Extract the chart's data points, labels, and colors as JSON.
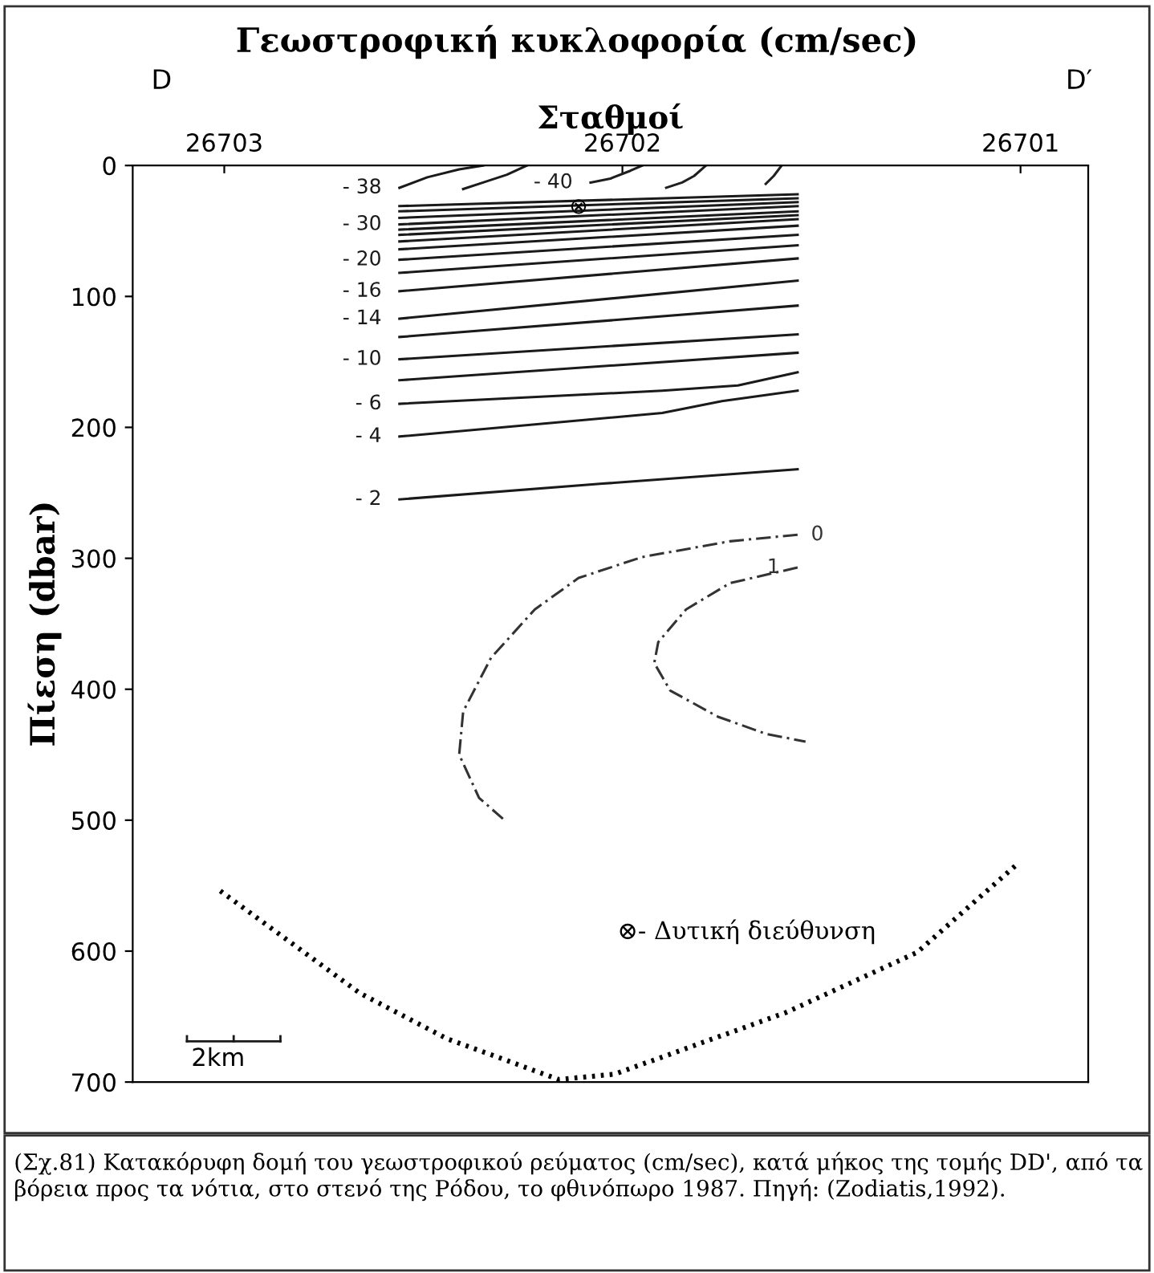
{
  "chart_data": {
    "type": "line",
    "title": "Γεωστροφική κυκλοφορία (cm/sec)",
    "xlabel": "Σταθμοί",
    "ylabel": "Πίεση (dbar)",
    "xlim": [
      26703.23,
      26700.83
    ],
    "xticks": [
      26703,
      26702,
      26701
    ],
    "ylim": [
      700,
      0
    ],
    "yticks": [
      0,
      100,
      200,
      300,
      400,
      500,
      600,
      700
    ],
    "grid": false,
    "legend": false,
    "marker": "none",
    "series": [
      {
        "name": "- 38",
        "color": "#1a1a1a",
        "x": [
          26702.56,
          26702.49,
          26702.41,
          26702.35
        ],
        "values": [
          17,
          9,
          3,
          0
        ]
      },
      {
        "color": "#1c1c1c",
        "x": [
          26702.4,
          26702.35,
          26702.29,
          26702.24
        ],
        "values": [
          18,
          13,
          7,
          0
        ]
      },
      {
        "name": "- 40",
        "color": "#1e1e1e",
        "x": [
          26702.08,
          26702.03,
          26701.98,
          26701.95
        ],
        "values": [
          13,
          10,
          4,
          0
        ]
      },
      {
        "color": "#202020",
        "x": [
          26701.89,
          26701.85,
          26701.82,
          26701.79
        ],
        "values": [
          17,
          13,
          8,
          0
        ]
      },
      {
        "color": "#222222",
        "x": [
          26701.64,
          26701.62,
          26701.6
        ],
        "values": [
          14,
          8,
          0
        ]
      },
      {
        "color": "#1a1a1a",
        "x": [
          26702.56,
          26701.56
        ],
        "values": [
          31,
          22
        ]
      },
      {
        "color": "#1a1a1a",
        "x": [
          26702.56,
          26701.56
        ],
        "values": [
          35,
          25
        ]
      },
      {
        "color": "#1a1a1a",
        "x": [
          26702.56,
          26701.56
        ],
        "values": [
          40,
          28
        ]
      },
      {
        "name": "- 30",
        "color": "#1a1a1a",
        "x": [
          26702.56,
          26701.56
        ],
        "values": [
          45,
          31
        ]
      },
      {
        "color": "#1a1a1a",
        "x": [
          26702.56,
          26701.56
        ],
        "values": [
          49,
          35
        ]
      },
      {
        "color": "#1a1a1a",
        "x": [
          26702.56,
          26701.56
        ],
        "values": [
          53,
          38
        ]
      },
      {
        "color": "#1a1a1a",
        "x": [
          26702.56,
          26701.56
        ],
        "values": [
          58,
          41
        ]
      },
      {
        "color": "#1a1a1a",
        "x": [
          26702.56,
          26701.56
        ],
        "values": [
          64,
          46
        ]
      },
      {
        "name": "- 20",
        "color": "#1a1a1a",
        "x": [
          26702.56,
          26701.56
        ],
        "values": [
          72,
          53
        ]
      },
      {
        "color": "#1a1a1a",
        "x": [
          26702.56,
          26701.56
        ],
        "values": [
          82,
          61
        ]
      },
      {
        "name": "- 16",
        "color": "#1a1a1a",
        "x": [
          26702.56,
          26701.56
        ],
        "values": [
          96,
          71
        ]
      },
      {
        "name": "- 14",
        "color": "#1a1a1a",
        "x": [
          26702.56,
          26701.56
        ],
        "values": [
          117,
          88
        ]
      },
      {
        "color": "#1a1a1a",
        "x": [
          26702.56,
          26701.56
        ],
        "values": [
          131,
          107
        ]
      },
      {
        "name": "- 10",
        "color": "#1a1a1a",
        "x": [
          26702.56,
          26701.56
        ],
        "values": [
          148,
          129
        ]
      },
      {
        "color": "#1a1a1a",
        "x": [
          26702.56,
          26701.56
        ],
        "values": [
          164,
          143
        ]
      },
      {
        "name": "- 6",
        "color": "#1a1a1a",
        "x": [
          26702.56,
          26701.9,
          26701.71,
          26701.56
        ],
        "values": [
          182,
          172,
          168,
          158
        ]
      },
      {
        "name": "- 4",
        "color": "#1a1a1a",
        "x": [
          26702.56,
          26701.9,
          26701.75,
          26701.56
        ],
        "values": [
          207,
          189,
          180,
          172
        ]
      },
      {
        "name": "- 2",
        "color": "#1a1a1a",
        "x": [
          26702.56,
          26702.05,
          26701.56
        ],
        "values": [
          255,
          243,
          232
        ]
      },
      {
        "name": "0",
        "color": "#333333",
        "line_style": "dashed",
        "x": [
          26701.56,
          26701.73,
          26701.95,
          26702.11,
          26702.22,
          26702.33,
          26702.4,
          26702.41,
          26702.36,
          26702.3
        ],
        "values": [
          282,
          287,
          299,
          315,
          339,
          376,
          417,
          450,
          483,
          499
        ]
      },
      {
        "name": "1",
        "color": "#333333",
        "line_style": "dashed",
        "x": [
          26701.56,
          26701.73,
          26701.84,
          26701.91,
          26701.92,
          26701.88,
          26701.76,
          26701.64,
          26701.54
        ],
        "values": [
          307,
          319,
          339,
          364,
          380,
          401,
          421,
          434,
          440
        ]
      },
      {
        "color": "#000000",
        "line_style": "dotted",
        "x": [
          26703.01,
          26702.66,
          26702.44,
          26702.16,
          26702.02,
          26701.59,
          26701.26,
          26701.01
        ],
        "values": [
          554,
          632,
          667,
          698,
          694,
          647,
          601,
          534
        ]
      }
    ],
    "annotations": [
      "D",
      "D′",
      {
        "text": "⊗",
        "x": 26702.11,
        "y": 32
      },
      "⊗- Δυτική διεύθυνση",
      "2km",
      "(Σχ.81) Κατακόρυφη δομή του γεωστροφικού ρεύματος (cm/sec), κατά μήκος της τομής DD', από τα βόρεια προς τα νότια, στο στενό της Ρόδου, το φθινόπωρο 1987. Πηγή: (Zodiatis,1992)."
    ]
  }
}
